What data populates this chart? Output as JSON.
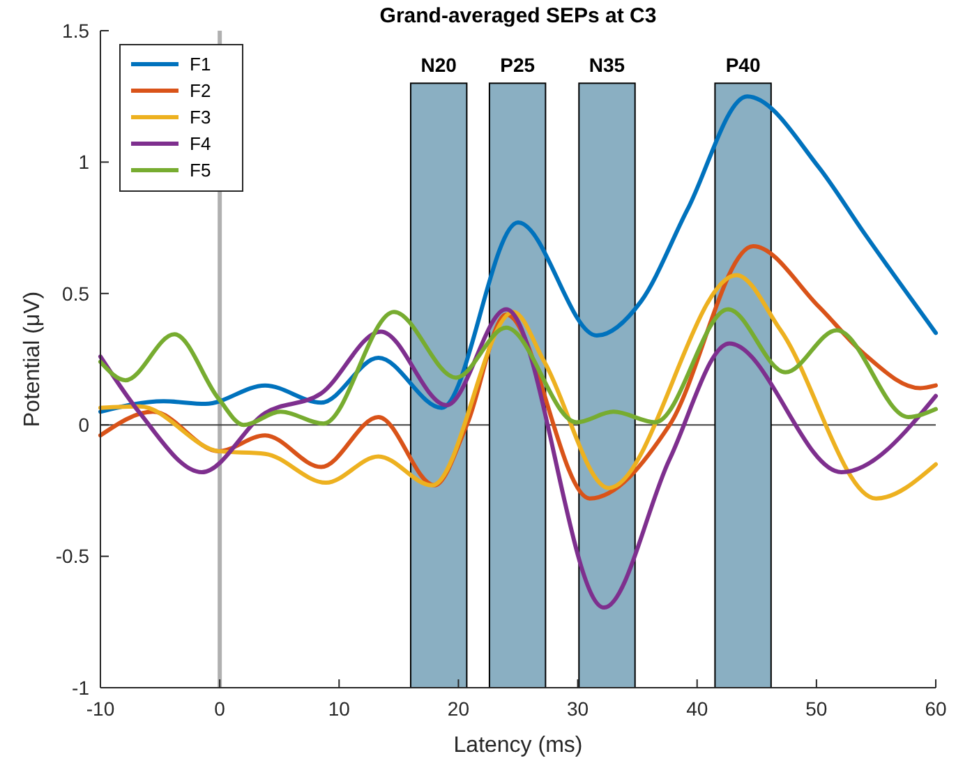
{
  "chart_data": {
    "type": "line",
    "title": "Grand-averaged SEPs at C3",
    "xlabel": "Latency (ms)",
    "ylabel": "Potential (μV)",
    "xlim": [
      -10,
      60
    ],
    "xticks": [
      -10,
      0,
      10,
      20,
      30,
      40,
      50,
      60
    ],
    "ylim": [
      -1,
      1.5
    ],
    "yticks": [
      -1,
      -0.5,
      0,
      0.5,
      1,
      1.5
    ],
    "legend": "top left",
    "grid": false,
    "series": [
      {
        "name": "F1",
        "color": "#0072bd",
        "x": [
          -10,
          -4.7,
          -1.2,
          3.8,
          8.5,
          13.3,
          18.6,
          25.0,
          31.6,
          35.3,
          39.2,
          44.2,
          50.2,
          54.0,
          60
        ],
        "values": [
          0.05,
          0.09,
          0.08,
          0.15,
          0.085,
          0.255,
          0.065,
          0.77,
          0.34,
          0.47,
          0.82,
          1.25,
          0.98,
          0.73,
          0.35
        ]
      },
      {
        "name": "F2",
        "color": "#d95319",
        "x": [
          -10,
          -5.6,
          -0.1,
          3.8,
          8.5,
          13.3,
          18.0,
          20.7,
          24.0,
          31.0,
          37.7,
          44.7,
          50.2,
          54.0,
          58.7,
          60
        ],
        "values": [
          -0.04,
          0.05,
          -0.1,
          -0.04,
          -0.16,
          0.03,
          -0.23,
          0,
          0.42,
          -0.28,
          0,
          0.68,
          0.45,
          0.27,
          0.14,
          0.15
        ]
      },
      {
        "name": "F3",
        "color": "#edb120",
        "x": [
          -10,
          -6.7,
          -0.1,
          3.8,
          8.9,
          13.3,
          17.8,
          24.6,
          27.2,
          32.6,
          43.3,
          47.0,
          55.0,
          60
        ],
        "values": [
          0.065,
          0.07,
          -0.1,
          -0.11,
          -0.22,
          -0.12,
          -0.23,
          0.43,
          0.24,
          -0.24,
          0.57,
          0.36,
          -0.28,
          -0.15
        ]
      },
      {
        "name": "F4",
        "color": "#7e2f8e",
        "x": [
          -10,
          -6.7,
          -1.5,
          3.8,
          8.5,
          13.5,
          19.0,
          24.0,
          32.2,
          37.7,
          42.7,
          52.1,
          60
        ],
        "values": [
          0.26,
          0.045,
          -0.18,
          0.045,
          0.12,
          0.355,
          0.075,
          0.44,
          -0.695,
          -0.13,
          0.31,
          -0.18,
          0.11
        ]
      },
      {
        "name": "F5",
        "color": "#77ac30",
        "x": [
          -10,
          -7.9,
          -3.8,
          -0.1,
          2.0,
          5.1,
          8.7,
          14.6,
          19.8,
          24.0,
          29.9,
          33.0,
          36.5,
          42.6,
          47.4,
          51.7,
          57.7,
          60
        ],
        "values": [
          0.24,
          0.17,
          0.345,
          0.1,
          0,
          0.05,
          0.005,
          0.43,
          0.18,
          0.37,
          0.01,
          0.05,
          0.01,
          0.44,
          0.2,
          0.36,
          0.03,
          0.06
        ]
      }
    ],
    "ref_lines": [
      {
        "axis": "x",
        "value": 0,
        "color": "#b0b0b0"
      },
      {
        "axis": "y",
        "value": 0,
        "color": "#404040"
      }
    ],
    "bands": [
      {
        "axis": "x",
        "from": 16,
        "to": 20.7,
        "label": "N20",
        "color": "#8aafc2"
      },
      {
        "axis": "x",
        "from": 22.6,
        "to": 27.3,
        "label": "P25",
        "color": "#8aafc2"
      },
      {
        "axis": "x",
        "from": 30.1,
        "to": 34.8,
        "label": "N35",
        "color": "#8aafc2"
      },
      {
        "axis": "x",
        "from": 41.5,
        "to": 46.2,
        "label": "P40",
        "color": "#8aafc2"
      }
    ]
  }
}
